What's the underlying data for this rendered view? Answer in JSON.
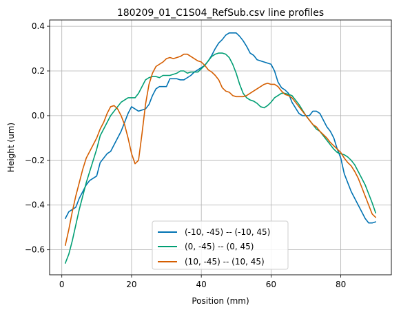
{
  "chart_data": {
    "type": "line",
    "title": "180209_01_C1S04_RefSub.csv line profiles",
    "xlabel": "Position (mm)",
    "ylabel": "Height (um)",
    "xlim": [
      -3.5,
      94.5
    ],
    "ylim": [
      -0.712,
      0.428
    ],
    "xticks": [
      0,
      20,
      40,
      60,
      80
    ],
    "yticks": [
      -0.6,
      -0.4,
      -0.2,
      0.0,
      0.2,
      0.4
    ],
    "xtick_labels": [
      "0",
      "20",
      "40",
      "60",
      "80"
    ],
    "ytick_labels": [
      "−0.6",
      "−0.4",
      "−0.2",
      "0.0",
      "0.2",
      "0.4"
    ],
    "grid": true,
    "legend_position": "lower-center",
    "series": [
      {
        "name": "(-10, -45) -- (-10, 45)",
        "color": "#0072B2",
        "x": [
          1,
          2,
          3,
          4,
          5,
          6,
          7,
          8,
          9,
          10,
          11,
          12,
          13,
          14,
          15,
          16,
          17,
          18,
          19,
          20,
          21,
          22,
          23,
          24,
          25,
          26,
          27,
          28,
          29,
          30,
          31,
          32,
          33,
          34,
          35,
          36,
          37,
          38,
          39,
          40,
          41,
          42,
          43,
          44,
          45,
          46,
          47,
          48,
          49,
          50,
          51,
          52,
          53,
          54,
          55,
          56,
          57,
          58,
          59,
          60,
          61,
          62,
          63,
          64,
          65,
          66,
          67,
          68,
          69,
          70,
          71,
          72,
          73,
          74,
          75,
          76,
          77,
          78,
          79,
          80,
          81,
          82,
          83,
          84,
          85,
          86,
          87,
          88,
          89,
          90
        ],
        "y": [
          -0.46,
          -0.43,
          -0.42,
          -0.41,
          -0.37,
          -0.34,
          -0.31,
          -0.29,
          -0.28,
          -0.27,
          -0.21,
          -0.19,
          -0.17,
          -0.16,
          -0.13,
          -0.1,
          -0.07,
          -0.03,
          0.01,
          0.04,
          0.03,
          0.02,
          0.025,
          0.03,
          0.05,
          0.09,
          0.12,
          0.13,
          0.13,
          0.13,
          0.165,
          0.165,
          0.165,
          0.16,
          0.16,
          0.17,
          0.18,
          0.195,
          0.205,
          0.215,
          0.225,
          0.245,
          0.27,
          0.3,
          0.325,
          0.34,
          0.36,
          0.37,
          0.37,
          0.37,
          0.355,
          0.335,
          0.31,
          0.28,
          0.27,
          0.25,
          0.245,
          0.24,
          0.235,
          0.23,
          0.2,
          0.15,
          0.125,
          0.115,
          0.1,
          0.06,
          0.035,
          0.01,
          0.0,
          0.0,
          0.0,
          0.02,
          0.02,
          0.01,
          -0.02,
          -0.05,
          -0.07,
          -0.1,
          -0.15,
          -0.19,
          -0.26,
          -0.3,
          -0.34,
          -0.37,
          -0.4,
          -0.43,
          -0.46,
          -0.48,
          -0.48,
          -0.475
        ]
      },
      {
        "name": "(0, -45) -- (0, 45)",
        "color": "#009E73",
        "x": [
          1,
          2,
          3,
          4,
          5,
          6,
          7,
          8,
          9,
          10,
          11,
          12,
          13,
          14,
          15,
          16,
          17,
          18,
          19,
          20,
          21,
          22,
          23,
          24,
          25,
          26,
          27,
          28,
          29,
          30,
          31,
          32,
          33,
          34,
          35,
          36,
          37,
          38,
          39,
          40,
          41,
          42,
          43,
          44,
          45,
          46,
          47,
          48,
          49,
          50,
          51,
          52,
          53,
          54,
          55,
          56,
          57,
          58,
          59,
          60,
          61,
          62,
          63,
          64,
          65,
          66,
          67,
          68,
          69,
          70,
          71,
          72,
          73,
          74,
          75,
          76,
          77,
          78,
          79,
          80,
          81,
          82,
          83,
          84,
          85,
          86,
          87,
          88,
          89,
          90
        ],
        "y": [
          -0.66,
          -0.62,
          -0.56,
          -0.49,
          -0.42,
          -0.36,
          -0.3,
          -0.25,
          -0.2,
          -0.15,
          -0.09,
          -0.06,
          -0.03,
          0.0,
          0.02,
          0.04,
          0.06,
          0.07,
          0.08,
          0.08,
          0.08,
          0.1,
          0.13,
          0.16,
          0.17,
          0.175,
          0.175,
          0.17,
          0.18,
          0.18,
          0.18,
          0.185,
          0.19,
          0.2,
          0.2,
          0.19,
          0.195,
          0.195,
          0.195,
          0.21,
          0.225,
          0.245,
          0.265,
          0.275,
          0.28,
          0.28,
          0.275,
          0.26,
          0.23,
          0.19,
          0.14,
          0.1,
          0.08,
          0.07,
          0.065,
          0.055,
          0.04,
          0.035,
          0.045,
          0.06,
          0.08,
          0.09,
          0.1,
          0.1,
          0.095,
          0.09,
          0.07,
          0.05,
          0.025,
          0.0,
          -0.02,
          -0.04,
          -0.06,
          -0.07,
          -0.09,
          -0.11,
          -0.13,
          -0.15,
          -0.165,
          -0.17,
          -0.175,
          -0.185,
          -0.2,
          -0.22,
          -0.25,
          -0.28,
          -0.31,
          -0.35,
          -0.39,
          -0.435
        ]
      },
      {
        "name": "(10, -45) -- (10, 45)",
        "color": "#D55E00",
        "x": [
          1,
          2,
          3,
          4,
          5,
          6,
          7,
          8,
          9,
          10,
          11,
          12,
          13,
          14,
          15,
          16,
          17,
          18,
          19,
          20,
          21,
          22,
          23,
          24,
          25,
          26,
          27,
          28,
          29,
          30,
          31,
          32,
          33,
          34,
          35,
          36,
          37,
          38,
          39,
          40,
          41,
          42,
          43,
          44,
          45,
          46,
          47,
          48,
          49,
          50,
          51,
          52,
          53,
          54,
          55,
          56,
          57,
          58,
          59,
          60,
          61,
          62,
          63,
          64,
          65,
          66,
          67,
          68,
          69,
          70,
          71,
          72,
          73,
          74,
          75,
          76,
          77,
          78,
          79,
          80,
          81,
          82,
          83,
          84,
          85,
          86,
          87,
          88,
          89,
          90
        ],
        "y": [
          -0.58,
          -0.51,
          -0.43,
          -0.36,
          -0.3,
          -0.24,
          -0.19,
          -0.16,
          -0.13,
          -0.1,
          -0.06,
          -0.03,
          0.01,
          0.04,
          0.045,
          0.03,
          0.0,
          -0.04,
          -0.1,
          -0.17,
          -0.215,
          -0.2,
          -0.08,
          0.05,
          0.14,
          0.19,
          0.22,
          0.23,
          0.24,
          0.255,
          0.26,
          0.255,
          0.26,
          0.265,
          0.275,
          0.275,
          0.265,
          0.255,
          0.245,
          0.24,
          0.225,
          0.205,
          0.195,
          0.18,
          0.16,
          0.125,
          0.11,
          0.105,
          0.09,
          0.085,
          0.085,
          0.085,
          0.09,
          0.1,
          0.11,
          0.12,
          0.13,
          0.14,
          0.145,
          0.14,
          0.14,
          0.13,
          0.11,
          0.095,
          0.09,
          0.08,
          0.06,
          0.04,
          0.02,
          0.0,
          -0.02,
          -0.04,
          -0.05,
          -0.07,
          -0.085,
          -0.1,
          -0.12,
          -0.135,
          -0.15,
          -0.165,
          -0.19,
          -0.21,
          -0.225,
          -0.25,
          -0.28,
          -0.32,
          -0.36,
          -0.4,
          -0.44,
          -0.455
        ]
      }
    ]
  }
}
